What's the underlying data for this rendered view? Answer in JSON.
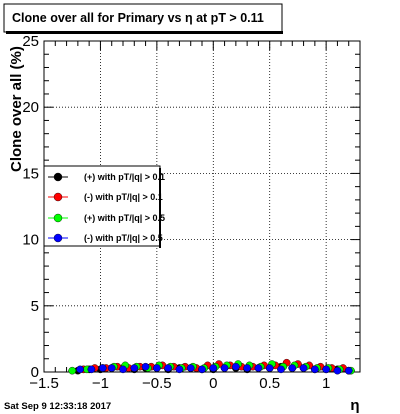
{
  "chart_data": {
    "type": "scatter",
    "title": "Clone  over all for Primary vs   η at pT > 0.11",
    "xlabel": "η",
    "ylabel": "Clone  over all (%)",
    "xlim": [
      -1.5,
      1.3
    ],
    "ylim": [
      0,
      25
    ],
    "x_ticks": [
      -1.5,
      -1,
      -0.5,
      0,
      0.5,
      1
    ],
    "x_tick_labels": [
      "−1.5",
      "−1",
      "−0.5",
      "0",
      "0.5",
      "1"
    ],
    "y_ticks": [
      0,
      5,
      10,
      15,
      20,
      25
    ],
    "y_tick_labels": [
      "0",
      "5",
      "10",
      "15",
      "20",
      "25"
    ],
    "grid": true,
    "legend_position": "left",
    "series": [
      {
        "name": "(+) with pT/|q| > 0.1",
        "color": "#000000",
        "x": [
          -1.2,
          -1.1,
          -1.0,
          -0.9,
          -0.8,
          -0.7,
          -0.6,
          -0.5,
          -0.4,
          -0.3,
          -0.2,
          -0.1,
          0.0,
          0.1,
          0.2,
          0.3,
          0.4,
          0.5,
          0.6,
          0.7,
          0.8,
          0.9,
          1.0,
          1.1,
          1.2
        ],
        "y": [
          0.1,
          0.2,
          0.2,
          0.3,
          0.3,
          0.2,
          0.3,
          0.3,
          0.2,
          0.3,
          0.3,
          0.2,
          0.2,
          0.3,
          0.3,
          0.2,
          0.3,
          0.3,
          0.4,
          0.3,
          0.3,
          0.2,
          0.2,
          0.2,
          0.1
        ]
      },
      {
        "name": "(-) with pT/|q| > 0.1",
        "color": "#ff0000",
        "x": [
          -1.15,
          -1.05,
          -0.95,
          -0.85,
          -0.75,
          -0.65,
          -0.55,
          -0.45,
          -0.35,
          -0.25,
          -0.15,
          -0.05,
          0.05,
          0.15,
          0.25,
          0.35,
          0.45,
          0.55,
          0.65,
          0.75,
          0.85,
          0.95,
          1.05,
          1.15
        ],
        "y": [
          0.2,
          0.3,
          0.3,
          0.4,
          0.3,
          0.4,
          0.4,
          0.5,
          0.4,
          0.4,
          0.3,
          0.5,
          0.6,
          0.5,
          0.4,
          0.4,
          0.5,
          0.5,
          0.7,
          0.6,
          0.5,
          0.4,
          0.3,
          0.3
        ]
      },
      {
        "name": "(+) with pT/|q| > 0.5",
        "color": "#00ff00",
        "x": [
          -1.25,
          -1.12,
          -0.98,
          -0.88,
          -0.78,
          -0.68,
          -0.58,
          -0.48,
          -0.38,
          -0.28,
          -0.18,
          -0.08,
          0.02,
          0.12,
          0.22,
          0.32,
          0.42,
          0.52,
          0.62,
          0.72,
          0.82,
          0.92,
          1.02,
          1.12,
          1.22
        ],
        "y": [
          0.1,
          0.2,
          0.3,
          0.4,
          0.5,
          0.4,
          0.3,
          0.5,
          0.4,
          0.3,
          0.4,
          0.3,
          0.4,
          0.5,
          0.6,
          0.5,
          0.4,
          0.6,
          0.4,
          0.5,
          0.4,
          0.3,
          0.3,
          0.2,
          0.1
        ]
      },
      {
        "name": "(-) with pT/|q| > 0.5",
        "color": "#0000ff",
        "x": [
          -1.18,
          -1.08,
          -0.98,
          -0.9,
          -0.8,
          -0.7,
          -0.6,
          -0.5,
          -0.4,
          -0.3,
          -0.2,
          -0.1,
          0.0,
          0.1,
          0.2,
          0.3,
          0.4,
          0.5,
          0.6,
          0.7,
          0.8,
          0.9,
          1.0,
          1.1,
          1.2
        ],
        "y": [
          0.2,
          0.2,
          0.3,
          0.3,
          0.2,
          0.3,
          0.4,
          0.3,
          0.3,
          0.2,
          0.3,
          0.2,
          0.3,
          0.3,
          0.4,
          0.3,
          0.3,
          0.3,
          0.2,
          0.3,
          0.3,
          0.2,
          0.2,
          0.1,
          0.1
        ]
      }
    ]
  },
  "footer": {
    "timestamp": "Sat Sep  9 12:33:18 2017"
  }
}
